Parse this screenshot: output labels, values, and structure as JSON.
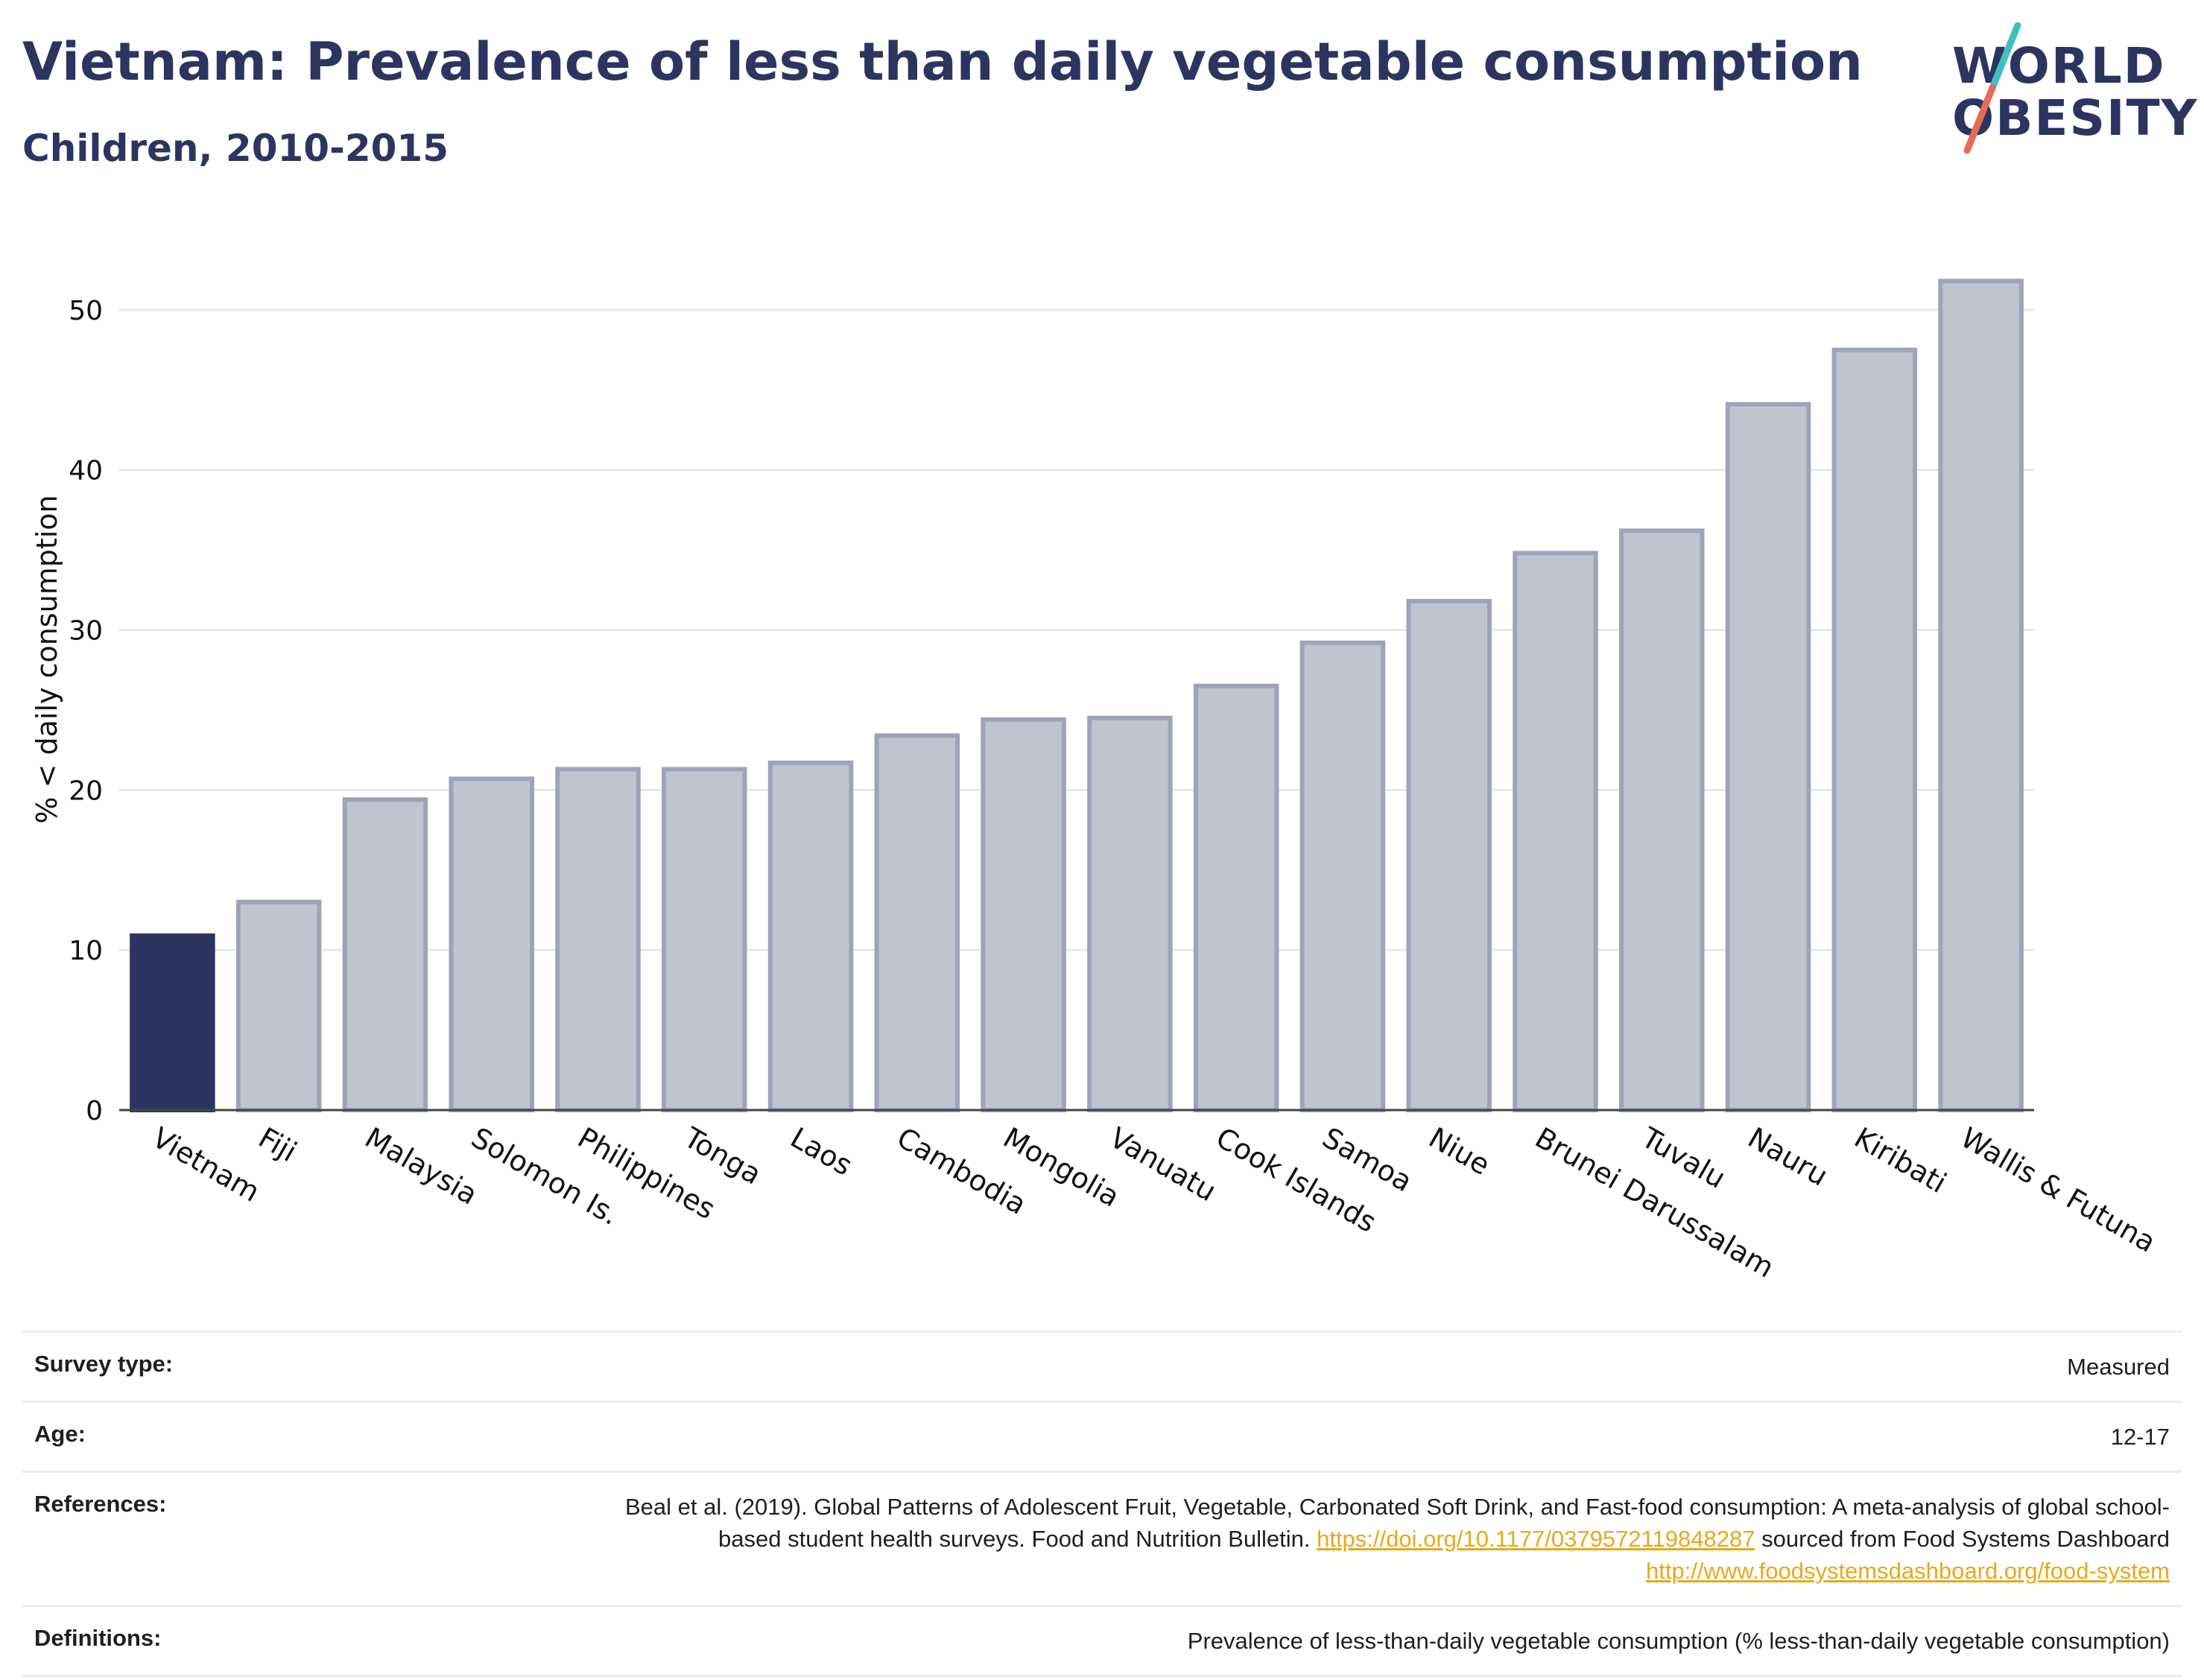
{
  "title": "Vietnam: Prevalence of less than daily vegetable consumption",
  "subtitle": "Children, 2010-2015",
  "logo": {
    "line1": "WORLD",
    "line2": "OBESITY"
  },
  "colors": {
    "highlight": "#2b3560",
    "bar_fill": "#c0c3d0",
    "bar_stroke": "#9ea3b8",
    "link": "#e8a81c",
    "logo_slash_teal": "#3fbfbf",
    "logo_slash_coral": "#e56b57"
  },
  "chart_data": {
    "type": "bar",
    "categories": [
      "Vietnam",
      "Fiji",
      "Malaysia",
      "Solomon Is.",
      "Philippines",
      "Tonga",
      "Laos",
      "Cambodia",
      "Mongolia",
      "Vanuatu",
      "Cook Islands",
      "Samoa",
      "Niue",
      "Brunei Darussalam",
      "Tuvalu",
      "Nauru",
      "Kiribati",
      "Wallis & Futuna"
    ],
    "values": [
      10.9,
      13.0,
      19.4,
      20.7,
      21.3,
      21.3,
      21.7,
      23.4,
      24.4,
      24.5,
      26.5,
      29.2,
      31.8,
      34.8,
      36.2,
      44.1,
      47.5,
      51.8
    ],
    "highlight": "Vietnam",
    "ylabel": "% < daily consumption",
    "ylim": [
      0,
      54
    ],
    "yticks": [
      0,
      10,
      20,
      30,
      40,
      50
    ],
    "grid": true
  },
  "meta": {
    "survey_type_label": "Survey type:",
    "survey_type_value": "Measured",
    "age_label": "Age:",
    "age_value": "12-17",
    "references_label": "References:",
    "references_text1": "Beal et al. (2019). Global Patterns of Adolescent Fruit, Vegetable, Carbonated Soft Drink, and Fast-food consumption: A meta-analysis of global school-based student health surveys. Food and Nutrition Bulletin.",
    "references_link1": "https://doi.org/10.1177/0379572119848287",
    "references_text2": "sourced from Food Systems Dashboard",
    "references_link2": "http://www.foodsystemsdashboard.org/food-system",
    "definitions_label": "Definitions:",
    "definitions_value": "Prevalence of less-than-daily vegetable consumption (% less-than-daily vegetable consumption)"
  }
}
